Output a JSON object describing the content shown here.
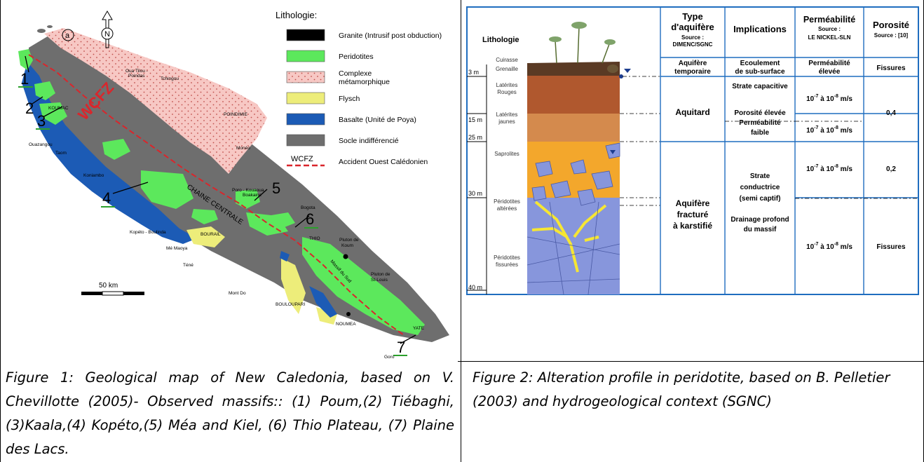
{
  "figure1": {
    "legend_title": "Lithologie:",
    "legend": [
      {
        "label": "Granite (Intrusif post obduction)",
        "color": "#000000",
        "pattern": "solid"
      },
      {
        "label": "Peridotites",
        "color": "#5ce85c",
        "pattern": "solid"
      },
      {
        "label": "Complexe métamorphique",
        "color": "#f7c8c4",
        "pattern": "dots"
      },
      {
        "label": "Flysch",
        "color": "#eded7a",
        "pattern": "solid"
      },
      {
        "label": "Basalte (Unité de Poya)",
        "color": "#1c5bb5",
        "pattern": "solid"
      },
      {
        "label": "Socle indifférencié",
        "color": "#6e6e6e",
        "pattern": "solid"
      },
      {
        "label": "Accident Ouest Calédonien",
        "color": "#d9262c",
        "pattern": "dashed",
        "key": "WCFZ"
      }
    ],
    "panel_label": "a",
    "north": "N",
    "fault_label": "WCFZ",
    "chain_label": "CHAINE CENTRALE",
    "scale_label": "50 km",
    "massif_numbers": [
      "1",
      "2",
      "3",
      "4",
      "5",
      "6",
      "7"
    ],
    "place_names": {
      "koumac": "KOUMAC",
      "oua_tilou": "Oua Tilou -",
      "poindas": "Poindas",
      "tchingou": "Tchingou",
      "poindimie": "POINDIMIE",
      "ouazangou": "Ouazangou",
      "taom": "Taom",
      "koniambo": "Koniambo",
      "moneo": "Monéo",
      "poro": "Poro - Kouaoua",
      "boakaine": "Boakaine",
      "bogota": "Bogota",
      "kopeto": "Kopéto - Boulinda",
      "me_maoya": "Mé Maoya",
      "bourail": "BOURAIL",
      "tene": "Téné",
      "thio": "THIO",
      "pluton_koum_1": "Pluton de",
      "pluton_koum_2": "Koum",
      "pluton_stlouis_1": "Pluton de",
      "pluton_stlouis_2": "St-Louis",
      "mont_do": "Mont Do",
      "massif_sud": "Massif du Sud",
      "boulouparis": "BOULOUPARI",
      "noumea": "NOUMEA",
      "yate": "YATE",
      "goro": "Goro"
    },
    "caption": "Figure 1: Geological map of New Caledonia, based on V. Chevillotte (2005)- Observed massifs:: (1) Poum,(2) Tiébaghi,(3)Kaala,(4) Kopéto,(5) Méa and Kiel, (6) Thio Plateau, (7) Plaine des Lacs."
  },
  "figure2": {
    "headers": {
      "lithologie": "Lithologie",
      "type_line1": "Type",
      "type_line2": "d'aquifère",
      "type_source1": "Source :",
      "type_source2": "DIMENC/SGNC",
      "implications": "Implications",
      "perm": "Perméabilité",
      "perm_source1": "Source :",
      "perm_source2": "LE NICKEL-SLN",
      "porosite": "Porosité",
      "porosite_source": "Source : [10]"
    },
    "depths": [
      "3 m",
      "15 m",
      "25 m",
      "30 m",
      "40 m"
    ],
    "layers": {
      "cuirasse": "Cuirasse",
      "grenaille": "Grenaille",
      "lat_rouges1": "Latérites",
      "lat_rouges2": "Rouges",
      "lat_jaunes1": "Latérites",
      "lat_jaunes2": "jaunes",
      "saprolites": "Saprolites",
      "per_alt1": "Péridotites",
      "per_alt2": "altérées",
      "per_fis1": "Péridotites",
      "per_fis2": "fissurées"
    },
    "rows": {
      "r1_type1": "Aquifère",
      "r1_type2": "temporaire",
      "r1_impl1": "Ecoulement",
      "r1_impl2": "de sub-surface",
      "r1_perm1": "Perméabilité",
      "r1_perm2": "élevée",
      "r1_poro": "Fissures",
      "r2_type": "Aquitard",
      "r2_impl1": "Strate capacitive",
      "r2_impl2": "Porosité élevée",
      "r2_impl3": "Perméabilité",
      "r2_impl4": "faible",
      "r2_perm_a": "10",
      "r2_perm_b": "-7",
      "r2_perm_c": " à 10",
      "r2_perm_d": "-8",
      "r2_perm_e": " m/s",
      "r2_poro": "0,4",
      "r3_type1": "Aquifère",
      "r3_type2": "fracturé",
      "r3_type3": "à karstifié",
      "r3_impl1": "Strate",
      "r3_impl2": "conductrice",
      "r3_impl3": "(semi captif)",
      "r3_impl4": "Drainage profond",
      "r3_impl5": "du massif",
      "r3_poro_a": "0,2",
      "r3_poro_b": "Fissures"
    },
    "caption": "Figure 2: Alteration profile in peridotite, based on B. Pelletier (2003) and hydrogeological context (SGNC)"
  }
}
